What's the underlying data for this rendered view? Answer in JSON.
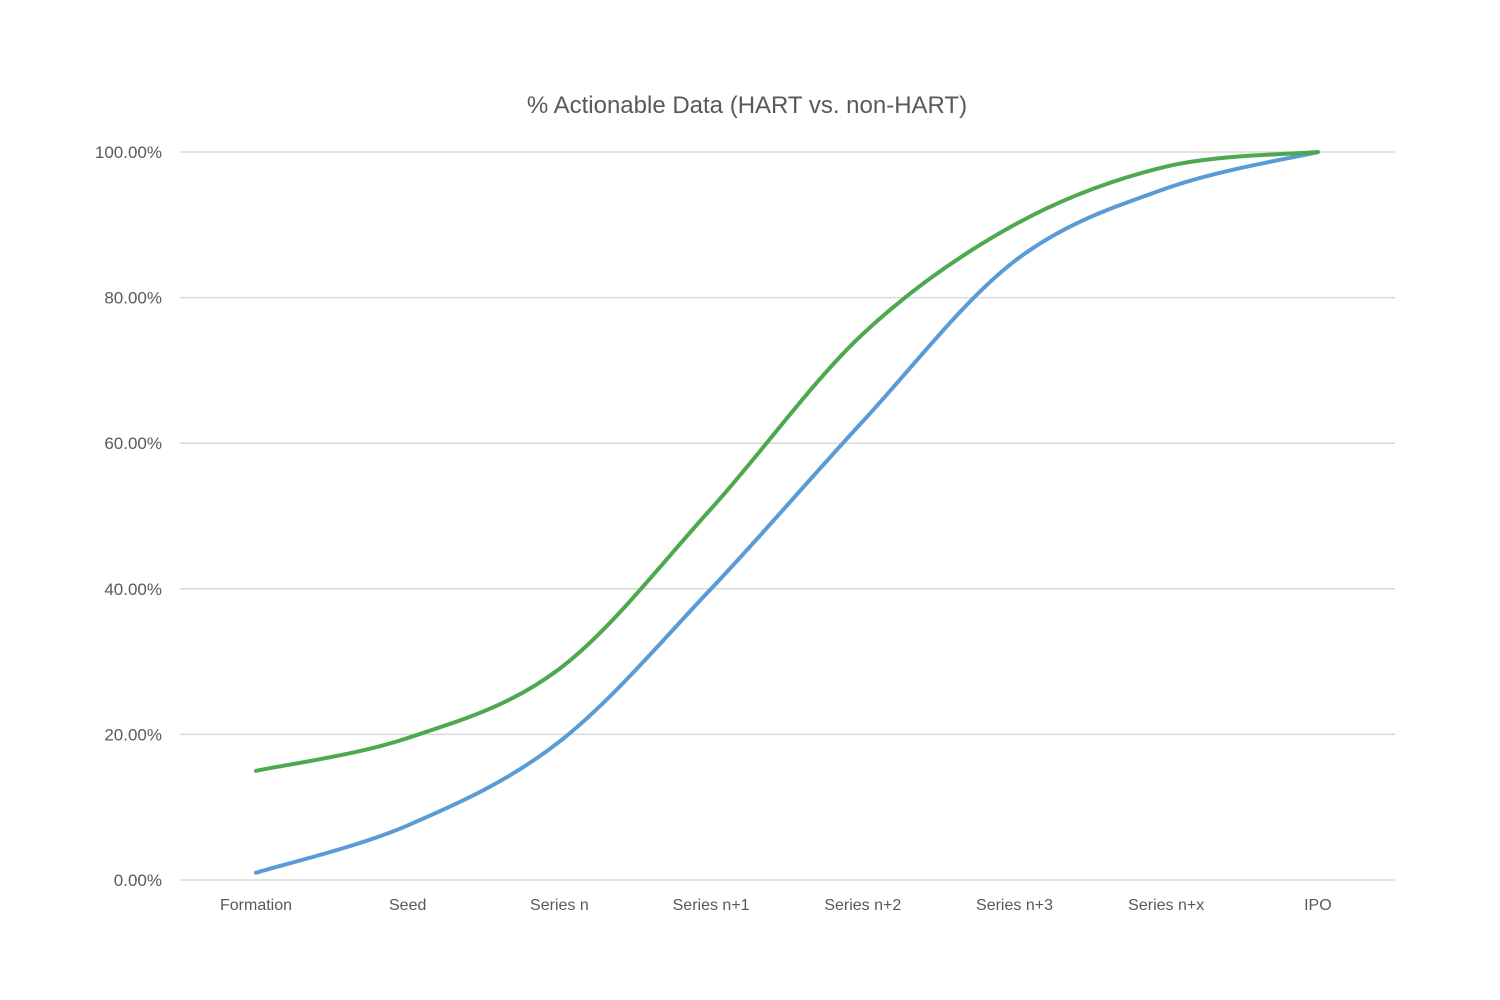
{
  "chart_data": {
    "type": "line",
    "title": "% Actionable Data (HART vs. non-HART)",
    "xlabel": "",
    "ylabel": "",
    "categories": [
      "Formation",
      "Seed",
      "Series n",
      "Series n+1",
      "Series n+2",
      "Series n+3",
      "Series n+x",
      "IPO"
    ],
    "y_ticks": [
      "0.00%",
      "20.00%",
      "40.00%",
      "60.00%",
      "80.00%",
      "100.00%"
    ],
    "ylim": [
      0,
      100
    ],
    "grid": true,
    "smooth": true,
    "series": [
      {
        "color": "#5b9bd5",
        "values": [
          1,
          7.5,
          19,
          40,
          63,
          85,
          95,
          100
        ]
      },
      {
        "color": "#4ea84e",
        "values": [
          15,
          19.5,
          29,
          51,
          75,
          90,
          98,
          100
        ]
      }
    ]
  }
}
